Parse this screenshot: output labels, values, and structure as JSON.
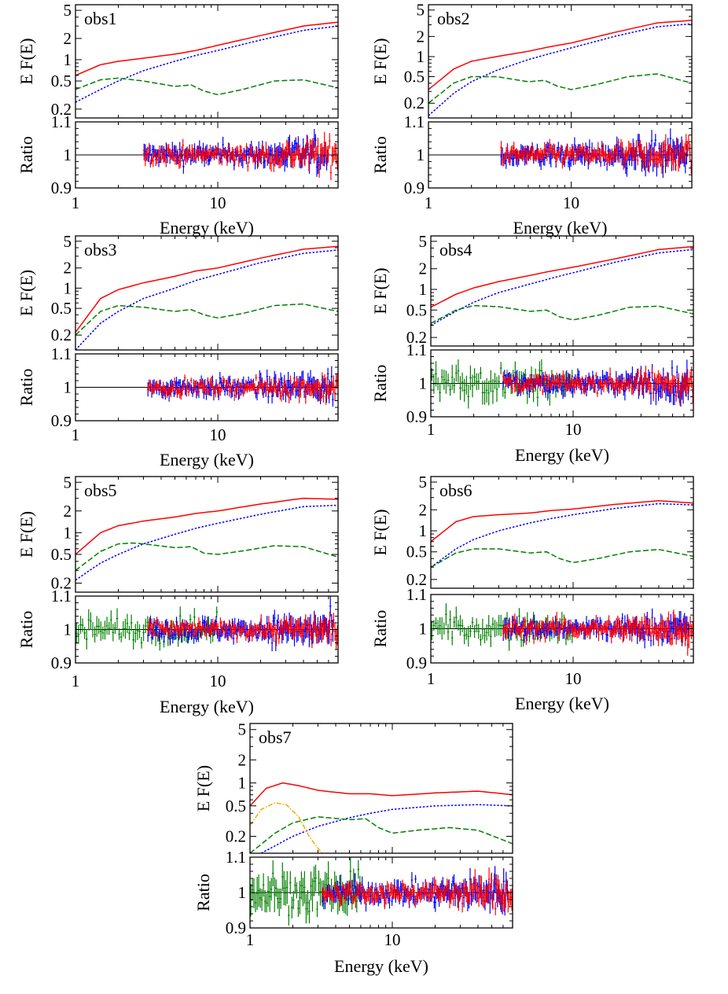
{
  "colors": {
    "total": "#ff0000",
    "powerlaw": "#0000ff",
    "reflection": "#008000",
    "disk": "#ffa500",
    "axes": "#000000"
  },
  "axis_labels": {
    "top_y": "E F(E)",
    "bottom_y": "Ratio",
    "x": "Energy (keV)"
  },
  "chart_data": [
    {
      "type": "line",
      "panel_label": "obs1",
      "xscale": "log",
      "xlim": [
        1,
        70
      ],
      "top_panel": {
        "ylabel": "E F(E)",
        "yscale": "log",
        "ylim": [
          0.15,
          6
        ],
        "yticks": [
          "0.2",
          "0.5",
          "1",
          "2",
          "5"
        ],
        "series": [
          {
            "color": "red",
            "style": "solid",
            "x": [
              1,
              1.5,
              2,
              3,
              5,
              7,
              10,
              20,
              40,
              70
            ],
            "y": [
              0.6,
              0.85,
              0.95,
              1.05,
              1.2,
              1.35,
              1.6,
              2.2,
              3.0,
              3.4
            ]
          },
          {
            "color": "blue",
            "style": "dotted",
            "x": [
              1,
              1.5,
              2,
              3,
              5,
              7,
              10,
              20,
              40,
              70
            ],
            "y": [
              0.25,
              0.38,
              0.5,
              0.7,
              0.95,
              1.15,
              1.35,
              1.9,
              2.6,
              3.0
            ]
          },
          {
            "color": "green",
            "style": "dashed",
            "x": [
              1,
              1.5,
              2,
              3,
              5,
              6.5,
              8,
              10,
              15,
              25,
              40,
              70
            ],
            "y": [
              0.38,
              0.52,
              0.55,
              0.5,
              0.42,
              0.44,
              0.36,
              0.32,
              0.38,
              0.5,
              0.52,
              0.4
            ]
          }
        ]
      },
      "ratio_panel": {
        "ylabel": "Ratio",
        "ylim": [
          0.9,
          1.1
        ],
        "yticks": [
          "0.9",
          "1",
          "1.1"
        ],
        "reference": 1,
        "bands": [
          {
            "color": "blue",
            "x_start": 3,
            "x_end": 60,
            "scatter": 0.028
          },
          {
            "color": "red",
            "x_start": 3,
            "x_end": 70,
            "scatter": 0.025
          }
        ]
      },
      "xticks": [
        "1",
        "10"
      ]
    },
    {
      "type": "line",
      "panel_label": "obs2",
      "xscale": "log",
      "xlim": [
        1,
        70
      ],
      "top_panel": {
        "ylabel": "E F(E)",
        "yscale": "log",
        "ylim": [
          0.12,
          6
        ],
        "yticks": [
          "0.2",
          "0.5",
          "1",
          "2",
          "5"
        ],
        "series": [
          {
            "color": "red",
            "style": "solid",
            "x": [
              1,
              1.5,
              2,
              3,
              5,
              7,
              10,
              20,
              40,
              70
            ],
            "y": [
              0.32,
              0.65,
              0.85,
              1.0,
              1.2,
              1.4,
              1.6,
              2.3,
              3.2,
              3.5
            ]
          },
          {
            "color": "blue",
            "style": "dotted",
            "x": [
              1,
              1.5,
              2,
              3,
              5,
              7,
              10,
              20,
              40,
              70
            ],
            "y": [
              0.13,
              0.28,
              0.42,
              0.62,
              0.9,
              1.1,
              1.35,
              2.0,
              2.8,
              3.1
            ]
          },
          {
            "color": "green",
            "style": "dashed",
            "x": [
              1,
              1.5,
              2,
              3,
              5,
              6.5,
              8,
              10,
              15,
              25,
              40,
              70
            ],
            "y": [
              0.2,
              0.4,
              0.5,
              0.5,
              0.42,
              0.44,
              0.36,
              0.32,
              0.38,
              0.5,
              0.55,
              0.4
            ]
          }
        ]
      },
      "ratio_panel": {
        "ylabel": "Ratio",
        "ylim": [
          0.9,
          1.1
        ],
        "yticks": [
          "0.9",
          "1",
          "1.1"
        ],
        "reference": 1,
        "bands": [
          {
            "color": "blue",
            "x_start": 3.2,
            "x_end": 65,
            "scatter": 0.03
          },
          {
            "color": "red",
            "x_start": 3.2,
            "x_end": 70,
            "scatter": 0.025
          }
        ]
      },
      "xticks": [
        "1",
        "10"
      ]
    },
    {
      "type": "line",
      "panel_label": "obs3",
      "xscale": "log",
      "xlim": [
        1,
        70
      ],
      "top_panel": {
        "ylabel": "E F(E)",
        "yscale": "log",
        "ylim": [
          0.12,
          6
        ],
        "yticks": [
          "0.2",
          "0.5",
          "1",
          "2",
          "5"
        ],
        "series": [
          {
            "color": "red",
            "style": "solid",
            "x": [
              1,
              1.5,
              2,
              3,
              5,
              7,
              10,
              20,
              40,
              70
            ],
            "y": [
              0.22,
              0.7,
              0.95,
              1.2,
              1.5,
              1.8,
              2.0,
              2.8,
              3.8,
              4.2
            ]
          },
          {
            "color": "blue",
            "style": "dotted",
            "x": [
              1,
              1.5,
              2,
              3,
              5,
              7,
              10,
              20,
              40,
              70
            ],
            "y": [
              0.12,
              0.3,
              0.45,
              0.7,
              1.0,
              1.3,
              1.6,
              2.4,
              3.3,
              3.7
            ]
          },
          {
            "color": "green",
            "style": "dashed",
            "x": [
              1,
              1.5,
              2,
              3,
              5,
              6.5,
              8,
              10,
              15,
              25,
              40,
              70
            ],
            "y": [
              0.2,
              0.45,
              0.55,
              0.52,
              0.45,
              0.48,
              0.4,
              0.36,
              0.42,
              0.55,
              0.58,
              0.45
            ]
          }
        ]
      },
      "ratio_panel": {
        "ylabel": "Ratio",
        "ylim": [
          0.9,
          1.1
        ],
        "yticks": [
          "0.9",
          "1",
          "1.1"
        ],
        "reference": 1,
        "bands": [
          {
            "color": "blue",
            "x_start": 3.2,
            "x_end": 65,
            "scatter": 0.025
          },
          {
            "color": "red",
            "x_start": 3.2,
            "x_end": 70,
            "scatter": 0.02
          }
        ]
      },
      "xticks": [
        "1",
        "10"
      ]
    },
    {
      "type": "line",
      "panel_label": "obs4",
      "xscale": "log",
      "xlim": [
        1,
        70
      ],
      "top_panel": {
        "ylabel": "E F(E)",
        "yscale": "log",
        "ylim": [
          0.15,
          6
        ],
        "yticks": [
          "0.2",
          "0.5",
          "1",
          "2",
          "5"
        ],
        "series": [
          {
            "color": "red",
            "style": "solid",
            "x": [
              1,
              1.5,
              2,
              3,
              5,
              7,
              10,
              20,
              40,
              70
            ],
            "y": [
              0.55,
              0.85,
              1.05,
              1.3,
              1.6,
              1.85,
              2.1,
              2.8,
              3.8,
              4.2
            ]
          },
          {
            "color": "blue",
            "style": "dotted",
            "x": [
              1,
              1.5,
              2,
              3,
              5,
              7,
              10,
              20,
              40,
              70
            ],
            "y": [
              0.3,
              0.48,
              0.65,
              0.9,
              1.2,
              1.45,
              1.75,
              2.5,
              3.4,
              3.8
            ]
          },
          {
            "color": "green",
            "style": "dashed",
            "x": [
              1,
              1.5,
              2,
              3,
              5,
              6.5,
              8,
              10,
              15,
              25,
              40,
              70
            ],
            "y": [
              0.32,
              0.5,
              0.58,
              0.56,
              0.48,
              0.5,
              0.4,
              0.36,
              0.42,
              0.55,
              0.57,
              0.44
            ]
          }
        ]
      },
      "ratio_panel": {
        "ylabel": "Ratio",
        "ylim": [
          0.9,
          1.1
        ],
        "yticks": [
          "0.9",
          "1",
          "1.1"
        ],
        "reference": 1,
        "bands": [
          {
            "color": "green",
            "x_start": 1,
            "x_end": 10,
            "scatter": 0.035
          },
          {
            "color": "blue",
            "x_start": 3.2,
            "x_end": 65,
            "scatter": 0.028
          },
          {
            "color": "red",
            "x_start": 3.2,
            "x_end": 70,
            "scatter": 0.022
          }
        ]
      },
      "xticks": [
        "1",
        "10"
      ]
    },
    {
      "type": "line",
      "panel_label": "obs5",
      "xscale": "log",
      "xlim": [
        1,
        70
      ],
      "top_panel": {
        "ylabel": "E F(E)",
        "yscale": "log",
        "ylim": [
          0.15,
          6
        ],
        "yticks": [
          "0.2",
          "0.5",
          "1",
          "2",
          "5"
        ],
        "series": [
          {
            "color": "red",
            "style": "solid",
            "x": [
              1,
              1.5,
              2,
              3,
              5,
              7,
              10,
              20,
              40,
              70
            ],
            "y": [
              0.5,
              1.0,
              1.25,
              1.45,
              1.65,
              1.85,
              2.0,
              2.5,
              3.0,
              2.9
            ]
          },
          {
            "color": "blue",
            "style": "dotted",
            "x": [
              1,
              1.5,
              2,
              3,
              5,
              7,
              10,
              20,
              40,
              70
            ],
            "y": [
              0.22,
              0.38,
              0.5,
              0.7,
              0.95,
              1.15,
              1.35,
              1.8,
              2.3,
              2.4
            ]
          },
          {
            "color": "green",
            "style": "dashed",
            "x": [
              1,
              1.5,
              2,
              2.5,
              3,
              5,
              6.5,
              8,
              10,
              15,
              25,
              40,
              70
            ],
            "y": [
              0.3,
              0.55,
              0.7,
              0.72,
              0.7,
              0.62,
              0.64,
              0.52,
              0.5,
              0.56,
              0.66,
              0.64,
              0.46
            ]
          }
        ]
      },
      "ratio_panel": {
        "ylabel": "Ratio",
        "ylim": [
          0.9,
          1.1
        ],
        "yticks": [
          "0.9",
          "1",
          "1.1"
        ],
        "reference": 1,
        "bands": [
          {
            "color": "green",
            "x_start": 1,
            "x_end": 10,
            "scatter": 0.03
          },
          {
            "color": "blue",
            "x_start": 3.2,
            "x_end": 65,
            "scatter": 0.028
          },
          {
            "color": "red",
            "x_start": 3.2,
            "x_end": 70,
            "scatter": 0.022
          }
        ]
      },
      "xticks": [
        "1",
        "10"
      ]
    },
    {
      "type": "line",
      "panel_label": "obs6",
      "xscale": "log",
      "xlim": [
        1,
        70
      ],
      "top_panel": {
        "ylabel": "E F(E)",
        "yscale": "log",
        "ylim": [
          0.15,
          6
        ],
        "yticks": [
          "0.2",
          "0.5",
          "1",
          "2",
          "5"
        ],
        "series": [
          {
            "color": "red",
            "style": "solid",
            "x": [
              1,
              1.5,
              2,
              3,
              5,
              7,
              10,
              20,
              40,
              70
            ],
            "y": [
              0.7,
              1.35,
              1.6,
              1.7,
              1.8,
              1.95,
              2.05,
              2.4,
              2.7,
              2.5
            ]
          },
          {
            "color": "blue",
            "style": "dotted",
            "x": [
              1,
              1.5,
              2,
              3,
              5,
              7,
              10,
              20,
              40,
              70
            ],
            "y": [
              0.3,
              0.55,
              0.75,
              1.0,
              1.3,
              1.5,
              1.7,
              2.1,
              2.45,
              2.35
            ]
          },
          {
            "color": "green",
            "style": "dashed",
            "x": [
              1,
              1.5,
              2,
              3,
              5,
              6.5,
              8,
              10,
              15,
              25,
              40,
              70
            ],
            "y": [
              0.3,
              0.48,
              0.55,
              0.55,
              0.48,
              0.5,
              0.4,
              0.35,
              0.4,
              0.5,
              0.54,
              0.43
            ]
          }
        ]
      },
      "ratio_panel": {
        "ylabel": "Ratio",
        "ylim": [
          0.9,
          1.1
        ],
        "yticks": [
          "0.9",
          "1",
          "1.1"
        ],
        "reference": 1,
        "bands": [
          {
            "color": "green",
            "x_start": 1,
            "x_end": 10,
            "scatter": 0.03
          },
          {
            "color": "blue",
            "x_start": 3.2,
            "x_end": 65,
            "scatter": 0.025
          },
          {
            "color": "red",
            "x_start": 3.2,
            "x_end": 70,
            "scatter": 0.025
          }
        ]
      },
      "xticks": [
        "1",
        "10"
      ]
    },
    {
      "type": "line",
      "panel_label": "obs7",
      "xscale": "log",
      "xlim": [
        1,
        70
      ],
      "top_panel": {
        "ylabel": "E F(E)",
        "yscale": "log",
        "ylim": [
          0.12,
          6
        ],
        "yticks": [
          "0.2",
          "0.5",
          "1",
          "2",
          "5"
        ],
        "series": [
          {
            "color": "red",
            "style": "solid",
            "x": [
              1,
              1.3,
              1.7,
              2.2,
              3,
              5,
              7,
              10,
              20,
              40,
              70
            ],
            "y": [
              0.5,
              0.85,
              1.0,
              0.92,
              0.8,
              0.72,
              0.72,
              0.68,
              0.74,
              0.78,
              0.7
            ]
          },
          {
            "color": "blue",
            "style": "dotted",
            "x": [
              1.2,
              1.5,
              2,
              3,
              5,
              7,
              10,
              20,
              40,
              70
            ],
            "y": [
              0.12,
              0.15,
              0.2,
              0.27,
              0.35,
              0.4,
              0.45,
              0.5,
              0.52,
              0.5
            ]
          },
          {
            "color": "green",
            "style": "dashed",
            "x": [
              1,
              1.5,
              2,
              3,
              5,
              6.5,
              8,
              10,
              15,
              25,
              40,
              70
            ],
            "y": [
              0.12,
              0.22,
              0.3,
              0.36,
              0.33,
              0.34,
              0.26,
              0.22,
              0.24,
              0.26,
              0.24,
              0.16
            ]
          },
          {
            "color": "orange",
            "style": "dash-dot",
            "x": [
              1,
              1.2,
              1.5,
              1.8,
              2.2,
              2.6,
              3,
              3.2
            ],
            "y": [
              0.28,
              0.45,
              0.55,
              0.52,
              0.36,
              0.2,
              0.14,
              0.12
            ]
          }
        ]
      },
      "ratio_panel": {
        "ylabel": "Ratio",
        "ylim": [
          0.9,
          1.1
        ],
        "yticks": [
          "0.9",
          "1",
          "1.1"
        ],
        "reference": 1,
        "bands": [
          {
            "color": "green",
            "x_start": 1,
            "x_end": 6,
            "scatter": 0.045
          },
          {
            "color": "blue",
            "x_start": 3.2,
            "x_end": 65,
            "scatter": 0.028
          },
          {
            "color": "red",
            "x_start": 3.2,
            "x_end": 70,
            "scatter": 0.025
          }
        ]
      },
      "xticks": [
        "1",
        "10"
      ]
    }
  ]
}
